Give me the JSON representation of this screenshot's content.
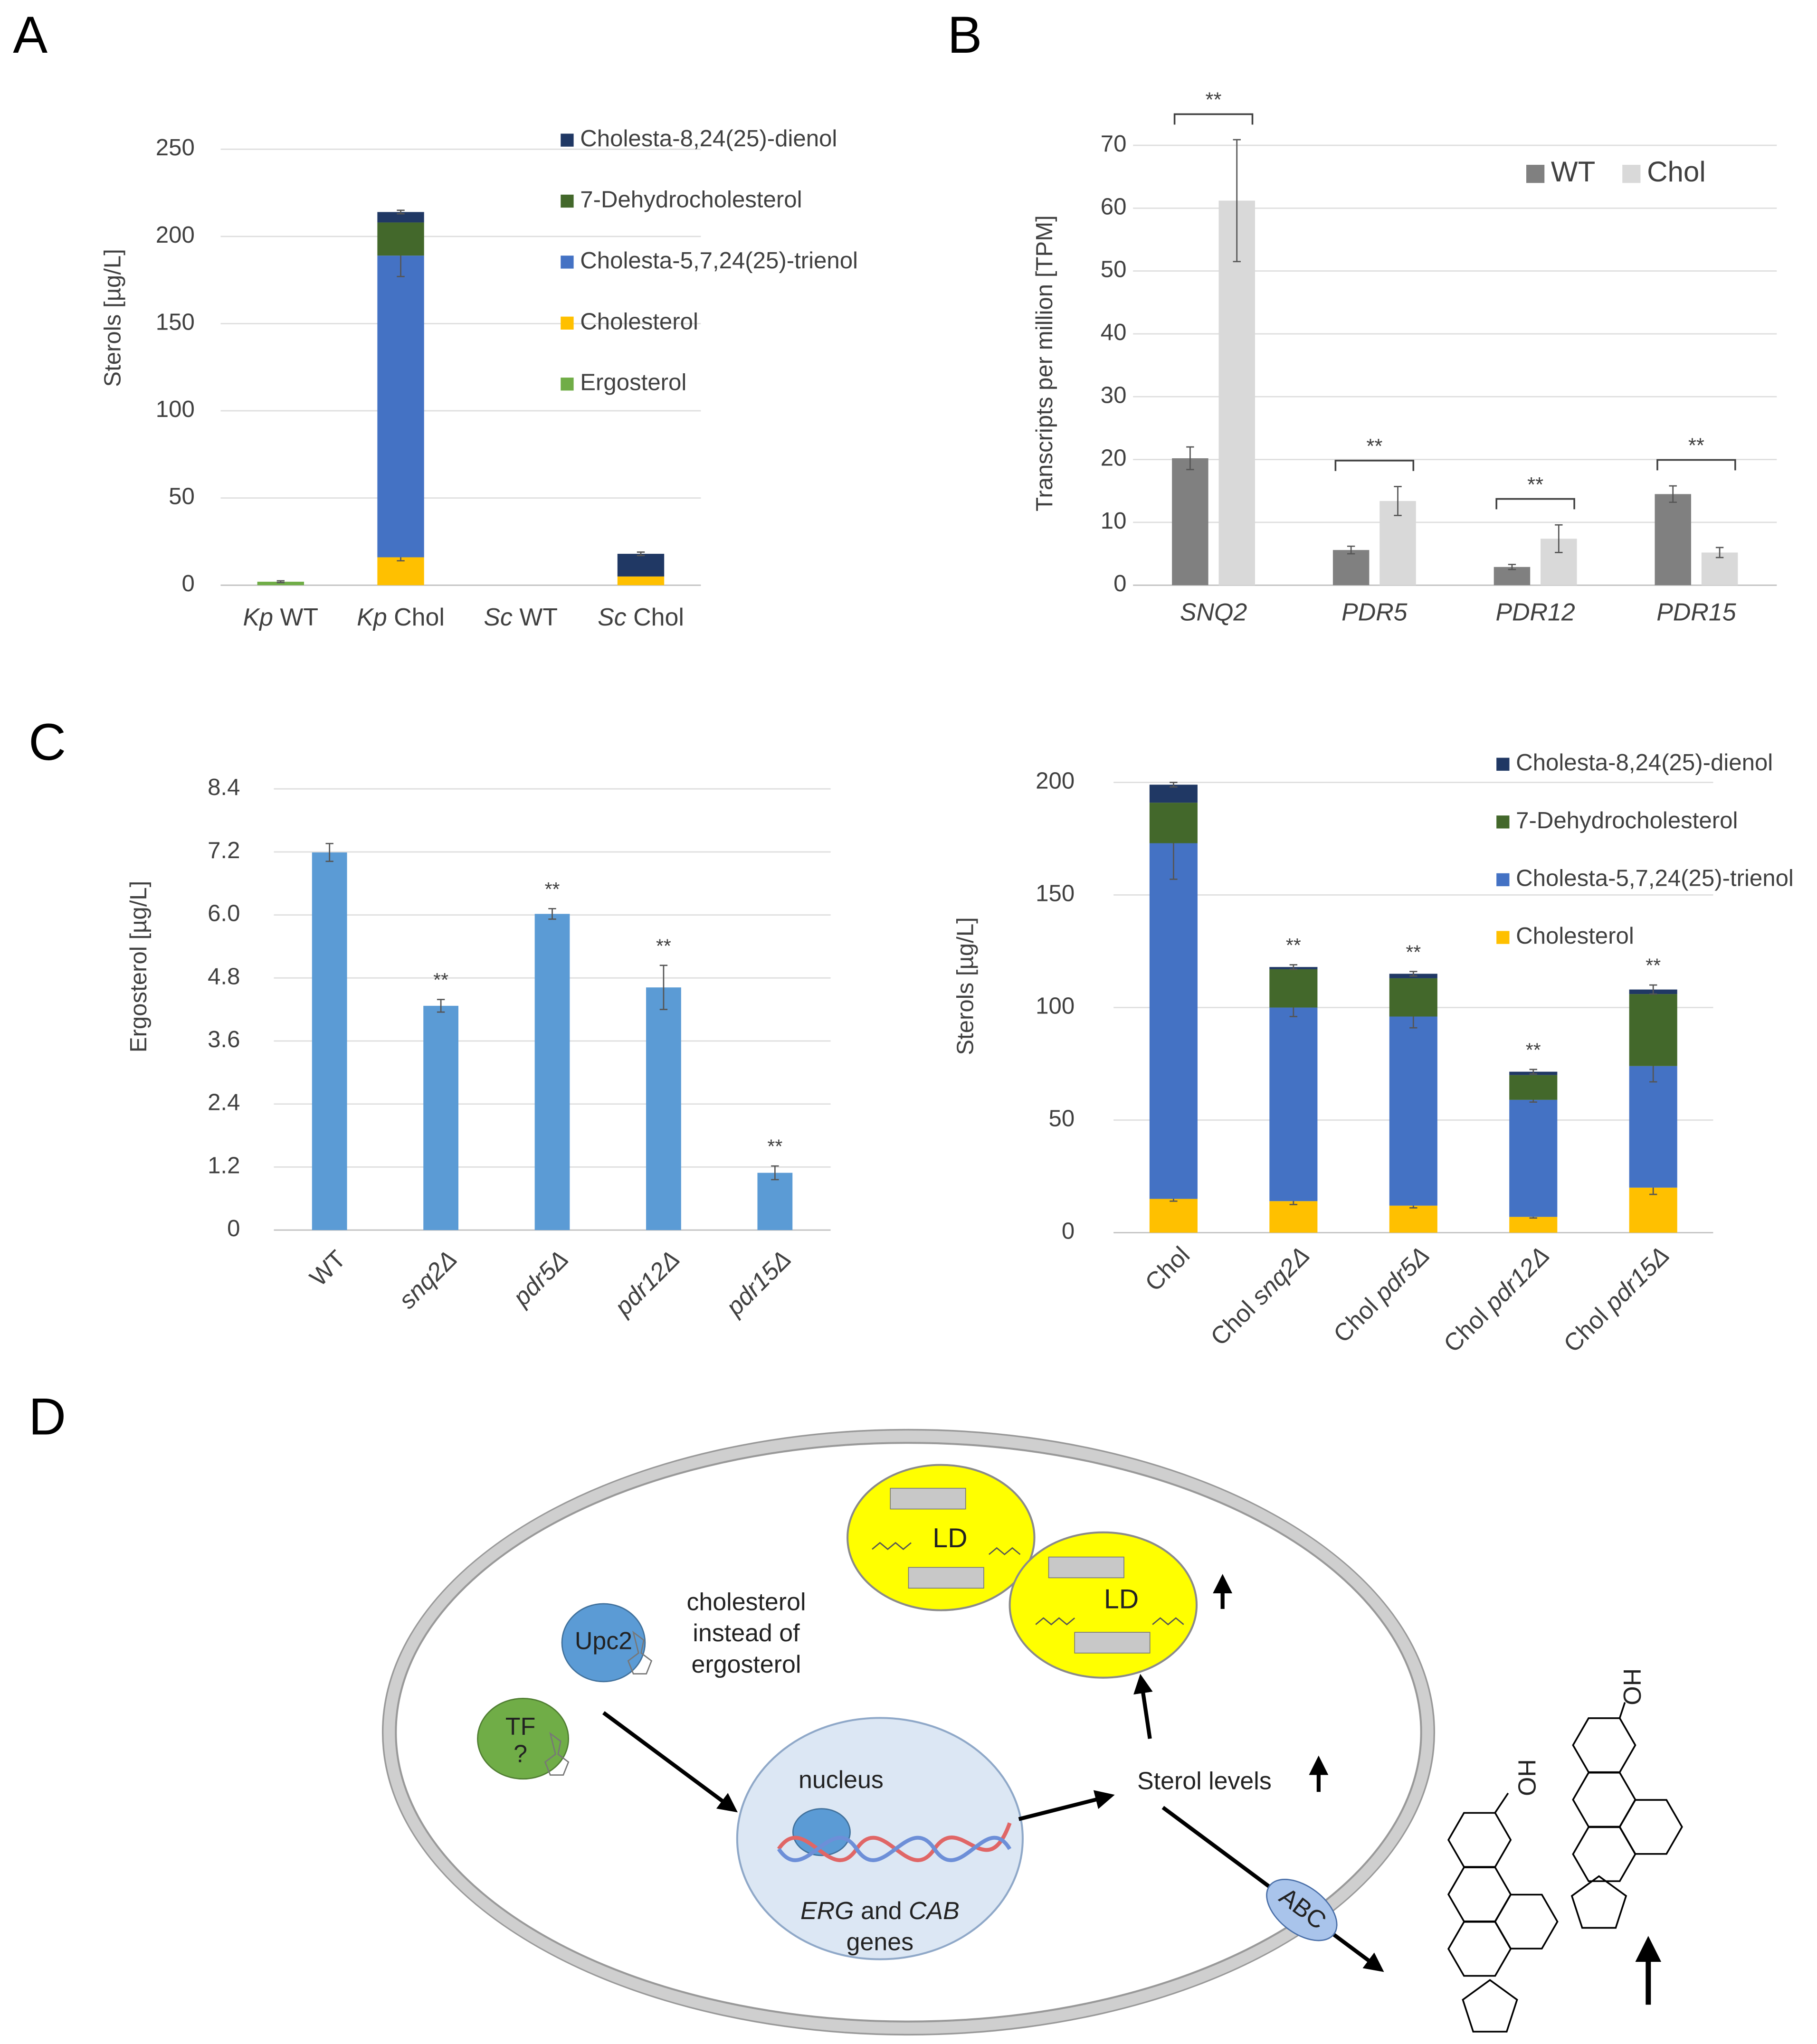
{
  "panel_labels": [
    "A",
    "B",
    "C",
    "D"
  ],
  "chart_data": [
    {
      "type": "stacked_bar",
      "ylabel": "Sterols [µg/L]",
      "categories": [
        "Kp WT",
        "Kp Chol",
        "Sc WT",
        "Sc Chol"
      ],
      "ylim": [
        0,
        250
      ],
      "yticks": [
        0,
        50,
        100,
        150,
        200,
        250
      ],
      "grid": true,
      "series": [
        {
          "name": "Ergosterol",
          "color": "#70ad47",
          "values": [
            2,
            0,
            0,
            0
          ],
          "errors": [
            0.5,
            null,
            null,
            null
          ]
        },
        {
          "name": "Cholesterol",
          "color": "#ffc000",
          "values": [
            0,
            16,
            0,
            5
          ],
          "errors": [
            null,
            2,
            null,
            null
          ]
        },
        {
          "name": "Cholesta-5,7,24(25)-trienol",
          "color": "#4472c4",
          "values": [
            0,
            173,
            0,
            0
          ],
          "errors": [
            null,
            12,
            null,
            null
          ]
        },
        {
          "name": "7-Dehydrocholesterol",
          "color": "#43682b",
          "values": [
            0,
            19,
            0,
            0
          ],
          "errors": [
            null,
            null,
            null,
            null
          ]
        },
        {
          "name": "Cholesta-8,24(25)-dienol",
          "color": "#203864",
          "values": [
            0,
            6,
            0,
            13
          ],
          "errors": [
            null,
            1,
            null,
            1
          ]
        }
      ]
    },
    {
      "type": "grouped_bar",
      "ylabel": "Transcripts per million [TPM]",
      "categories": [
        "SNQ2",
        "PDR5",
        "PDR12",
        "PDR15"
      ],
      "ylim": [
        0,
        70
      ],
      "yticks": [
        0,
        10,
        20,
        30,
        40,
        50,
        60,
        70
      ],
      "grid": true,
      "legend": "top-right",
      "series": [
        {
          "name": "WT",
          "color": "#808080",
          "values": [
            20.2,
            5.6,
            2.9,
            14.5
          ],
          "errors": [
            1.8,
            0.6,
            0.4,
            1.3
          ]
        },
        {
          "name": "Chol",
          "color": "#d9d9d9",
          "values": [
            61.2,
            13.4,
            7.4,
            5.2
          ],
          "errors": [
            9.7,
            2.3,
            2.2,
            0.8
          ]
        }
      ],
      "annotations": [
        "**",
        "**",
        "**",
        "**"
      ]
    },
    {
      "type": "bar",
      "ylabel": "Ergosterol [µg/L]",
      "categories": [
        "WT",
        "snq2Δ",
        "pdr5Δ",
        "pdr12Δ",
        "pdr15Δ"
      ],
      "values": [
        7.19,
        4.27,
        6.02,
        4.62,
        1.09
      ],
      "errors": [
        0.17,
        0.12,
        0.1,
        0.42,
        0.13
      ],
      "color": "#5b9bd5",
      "ylim": [
        0,
        8.4
      ],
      "yticks": [
        0,
        1.2,
        2.4,
        3.6,
        4.8,
        {
          "value": 6,
          "label": "6.0"
        },
        7.2,
        8.4
      ],
      "grid": true,
      "annotations": [
        null,
        "**",
        "**",
        "**",
        "**"
      ]
    },
    {
      "type": "stacked_bar",
      "ylabel": "Sterols [µg/L]",
      "categories": [
        "Chol",
        "Chol snq2Δ",
        "Chol pdr5Δ",
        "Chol pdr12Δ",
        "Chol pdr15Δ"
      ],
      "ylim": [
        0,
        200
      ],
      "yticks": [
        0,
        50,
        100,
        150,
        200
      ],
      "grid": true,
      "series": [
        {
          "name": "Cholesterol",
          "color": "#ffc000",
          "values": [
            15,
            14,
            12,
            7,
            20
          ],
          "errors": [
            1,
            1.5,
            1,
            0.5,
            3
          ]
        },
        {
          "name": "Cholesta-5,7,24(25)-trienol",
          "color": "#4472c4",
          "values": [
            158,
            86,
            84,
            52,
            54
          ],
          "errors": [
            16,
            4,
            5,
            1,
            7
          ]
        },
        {
          "name": "7-Dehydrocholesterol",
          "color": "#43682b",
          "values": [
            18,
            17,
            17,
            11,
            32
          ],
          "errors": [
            null,
            null,
            null,
            null,
            null
          ]
        },
        {
          "name": "Cholesta-8,24(25)-dienol",
          "color": "#203864",
          "values": [
            8,
            1,
            2,
            1.5,
            2
          ],
          "errors": [
            1,
            1,
            1,
            1,
            2
          ]
        }
      ],
      "annotations": [
        null,
        "**",
        "**",
        "**",
        "**"
      ]
    }
  ],
  "diagram": {
    "lipid_droplets": [
      "LD",
      "LD"
    ],
    "upc2": "Upc2",
    "tf": [
      "TF",
      "?"
    ],
    "note": [
      "cholesterol",
      "instead of",
      "ergosterol"
    ],
    "nucleus": "nucleus",
    "genes": {
      "line1": [
        "ERG",
        "and",
        "CAB"
      ],
      "line2": "genes"
    },
    "sterol_levels": "Sterol levels",
    "transporter": "ABC",
    "hydroxyl_labels": [
      "HO",
      "HO"
    ]
  }
}
